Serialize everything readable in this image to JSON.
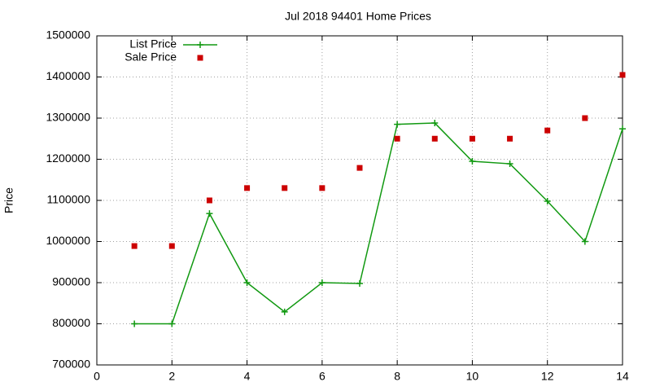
{
  "chart_data": {
    "type": "line",
    "title": "Jul 2018 94401 Home Prices",
    "y_label": "Price",
    "x": [
      1,
      2,
      3,
      4,
      5,
      6,
      7,
      8,
      9,
      10,
      11,
      12,
      13,
      14
    ],
    "series": [
      {
        "name": "List Price",
        "color": "#119911",
        "mode": "lines+points",
        "values": [
          800000,
          800000,
          1068000,
          900000,
          829000,
          900000,
          898000,
          1285000,
          1288000,
          1195000,
          1189000,
          1098000,
          1000000,
          1274000
        ]
      },
      {
        "name": "Sale Price",
        "color": "#cc0000",
        "mode": "points",
        "values": [
          989000,
          989000,
          1100000,
          1130000,
          1130000,
          1130000,
          1179000,
          1250000,
          1250000,
          1250000,
          1250000,
          1270000,
          1300000,
          1405000
        ]
      }
    ],
    "xlim": [
      0,
      14
    ],
    "xticks": [
      0,
      2,
      4,
      6,
      8,
      10,
      12,
      14
    ],
    "ylim": [
      700000,
      1500000
    ],
    "yticks": [
      700000,
      800000,
      900000,
      1000000,
      1100000,
      1200000,
      1300000,
      1400000,
      1500000
    ],
    "grid": true,
    "legend": "top-left"
  }
}
